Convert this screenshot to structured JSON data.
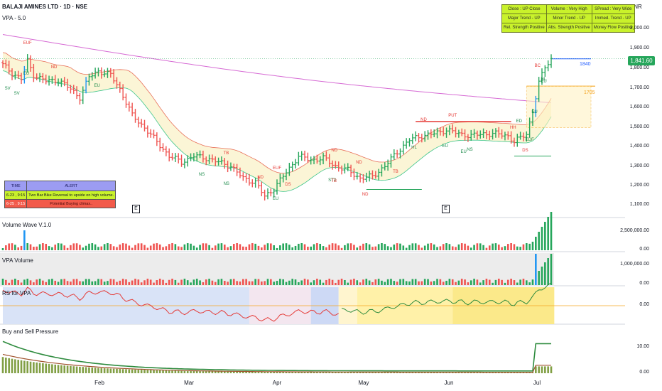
{
  "header": {
    "title": "BALAJI AMINES LTD · 1D · NSE",
    "indicator": "VPA - 5.0",
    "currency": "INR"
  },
  "info_table": [
    [
      "Close : UP Close",
      "Volume : Very High",
      "SPread : Very Wide"
    ],
    [
      "Major Trend - UP",
      "Minor Trend - UP",
      "Immed. Trend - UP"
    ],
    [
      "Rel. Strength Positive",
      "Abs. Strength Positive",
      "Money Flow Positive"
    ]
  ],
  "alert_table": {
    "headers": [
      "TIME",
      "ALERT"
    ],
    "rows": [
      {
        "time": "6-23 , 9:15",
        "alert": "Two Bar Bike Reversal to upside on high volume.",
        "color": "#c9f22b"
      },
      {
        "time": "6-25 , 9:15",
        "alert": "Potential Buying climax..",
        "color": "#f25a4a"
      }
    ]
  },
  "panels": {
    "volume_wave": "Volume Wave V.1.0",
    "vpa_volume": "VPA Volume",
    "rs": "RS for VPA",
    "pressure": "Buy and Sell Pressure"
  },
  "axes": {
    "price_ticks": [
      "2,000.00",
      "1,900.00",
      "1,800.00",
      "1,700.00",
      "1,600.00",
      "1,500.00",
      "1,400.00",
      "1,300.00",
      "1,200.00",
      "1,100.00"
    ],
    "volume_wave_ticks": [
      "2,500,000.00",
      "0.00"
    ],
    "vpa_volume_ticks": [
      "1,000,000.00",
      "0.00"
    ],
    "rs_ticks": [
      "0.00"
    ],
    "pressure_ticks": [
      "10.00",
      "0.00"
    ],
    "months": [
      "Feb",
      "Mar",
      "Apr",
      "May",
      "Jun",
      "Jul"
    ],
    "last_price": "1,841.60"
  },
  "annotations": {
    "level_1840": "1840",
    "level_1705": "1705",
    "earnings": "E",
    "labels": [
      "EUF",
      "SV",
      "SV",
      "EU",
      "ND",
      "EU",
      "TB",
      "NS",
      "NS",
      "ND",
      "EUF",
      "EU",
      "DS",
      "ND",
      "ST2",
      "TB",
      "ND",
      "ND",
      "TB",
      "HL",
      "ND",
      "EU",
      "PUT",
      "EU",
      "NS",
      "HH",
      "ED",
      "DS",
      "EDF",
      "EU",
      "BC",
      "EU",
      "HL"
    ]
  },
  "colors": {
    "up": "#26a65b",
    "down": "#ef5350",
    "climax": "#2196f3",
    "ma_slow": "#d66bd4",
    "band_upper": "#e8705a",
    "band_lower": "#3cc58a"
  },
  "chart_data": {
    "type": "candlestick",
    "title": "BALAJI AMINES LTD · 1D · NSE",
    "ylim": [
      1060,
      2060
    ],
    "x_months": [
      "Feb",
      "Mar",
      "Apr",
      "May",
      "Jun",
      "Jul"
    ],
    "close_path": [
      {
        "i": 0,
        "close": 1810
      },
      {
        "i": 3,
        "close": 1770
      },
      {
        "i": 6,
        "close": 1740
      },
      {
        "i": 8,
        "close": 1830
      },
      {
        "i": 10,
        "close": 1760
      },
      {
        "i": 14,
        "close": 1730
      },
      {
        "i": 18,
        "close": 1735
      },
      {
        "i": 22,
        "close": 1690
      },
      {
        "i": 25,
        "close": 1650
      },
      {
        "i": 28,
        "close": 1750
      },
      {
        "i": 31,
        "close": 1780
      },
      {
        "i": 35,
        "close": 1760
      },
      {
        "i": 38,
        "close": 1690
      },
      {
        "i": 42,
        "close": 1560
      },
      {
        "i": 46,
        "close": 1500
      },
      {
        "i": 50,
        "close": 1430
      },
      {
        "i": 54,
        "close": 1360
      },
      {
        "i": 58,
        "close": 1330
      },
      {
        "i": 62,
        "close": 1360
      },
      {
        "i": 66,
        "close": 1350
      },
      {
        "i": 70,
        "close": 1330
      },
      {
        "i": 74,
        "close": 1310
      },
      {
        "i": 78,
        "close": 1250
      },
      {
        "i": 82,
        "close": 1230
      },
      {
        "i": 85,
        "close": 1160
      },
      {
        "i": 88,
        "close": 1200
      },
      {
        "i": 92,
        "close": 1280
      },
      {
        "i": 96,
        "close": 1360
      },
      {
        "i": 100,
        "close": 1340
      },
      {
        "i": 104,
        "close": 1350
      },
      {
        "i": 108,
        "close": 1310
      },
      {
        "i": 112,
        "close": 1290
      },
      {
        "i": 116,
        "close": 1250
      },
      {
        "i": 120,
        "close": 1260
      },
      {
        "i": 124,
        "close": 1310
      },
      {
        "i": 128,
        "close": 1380
      },
      {
        "i": 132,
        "close": 1440
      },
      {
        "i": 136,
        "close": 1460
      },
      {
        "i": 140,
        "close": 1470
      },
      {
        "i": 144,
        "close": 1490
      },
      {
        "i": 148,
        "close": 1470
      },
      {
        "i": 152,
        "close": 1460
      },
      {
        "i": 156,
        "close": 1470
      },
      {
        "i": 160,
        "close": 1470
      },
      {
        "i": 164,
        "close": 1460
      },
      {
        "i": 166,
        "close": 1430
      },
      {
        "i": 168,
        "close": 1450
      },
      {
        "i": 170,
        "close": 1470
      },
      {
        "i": 172,
        "close": 1580
      },
      {
        "i": 174,
        "close": 1720
      },
      {
        "i": 176,
        "close": 1800
      },
      {
        "i": 178,
        "close": 1841.6
      }
    ],
    "levels": [
      {
        "label": "1840",
        "value": 1840
      },
      {
        "label": "1705",
        "value": 1705
      }
    ],
    "last_close": 1841.6
  }
}
